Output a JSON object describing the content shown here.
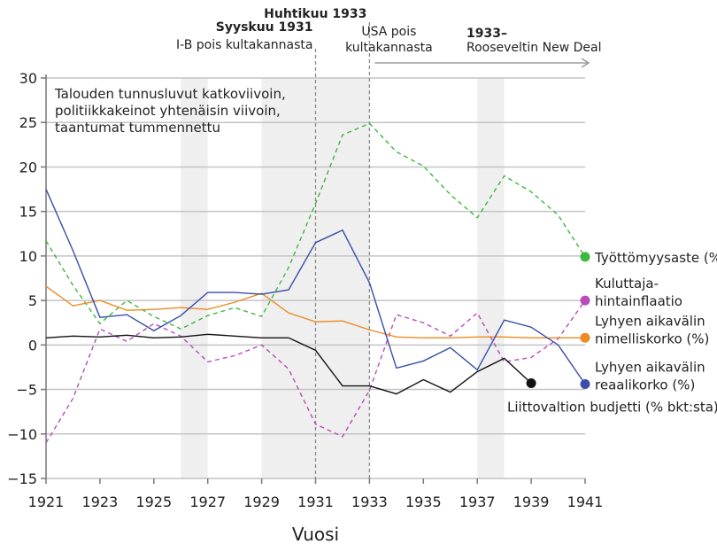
{
  "chart_data": {
    "type": "line",
    "xlabel": "Vuosi",
    "ylabel": "",
    "xlim": [
      1921,
      1941
    ],
    "ylim": [
      -15,
      30
    ],
    "yticks": [
      30,
      25,
      20,
      15,
      10,
      5,
      0,
      -5,
      -10,
      -15
    ],
    "ytick_labels": [
      "30",
      "25",
      "20",
      "15",
      "10",
      "5",
      "0",
      "−5",
      "−10",
      "−15"
    ],
    "xticks": [
      1921,
      1923,
      1925,
      1927,
      1929,
      1931,
      1933,
      1935,
      1937,
      1939,
      1941
    ],
    "xtick_labels": [
      "1921",
      "1923",
      "1925",
      "1927",
      "1929",
      "1931",
      "1933",
      "1935",
      "1937",
      "1939",
      "1941"
    ],
    "grid": "horizontal",
    "note": [
      "Talouden tunnusluvut katkoviivoin,",
      "politiikkakeinot yhtenäisin viivoin,",
      "taantumat tummennettu"
    ],
    "recessions": [
      [
        1926,
        1927
      ],
      [
        1929,
        1933
      ],
      [
        1937,
        1938
      ]
    ],
    "events": [
      {
        "year": 1931,
        "title": "Syyskuu 1931",
        "text": "I-B pois kultakannasta"
      },
      {
        "year": 1933,
        "title": "Huhtikuu 1933",
        "text": [
          "USA pois",
          "kultakannasta"
        ]
      }
    ],
    "arrow": {
      "from": 1933,
      "to": 1941,
      "title": "1933–",
      "text": "Rooseveltin New Deal"
    },
    "x": [
      1921,
      1922,
      1923,
      1924,
      1925,
      1926,
      1927,
      1928,
      1929,
      1930,
      1931,
      1932,
      1933,
      1934,
      1935,
      1936,
      1937,
      1938,
      1939,
      1940,
      1941
    ],
    "series": [
      {
        "name": "Työttömyysaste (%)",
        "label": [
          "Työttömyysaste (%)"
        ],
        "color": "#3cb83c",
        "dashed": true,
        "values": [
          11.7,
          6.7,
          2.4,
          5.0,
          3.2,
          1.8,
          3.3,
          4.2,
          3.2,
          8.7,
          15.9,
          23.6,
          24.9,
          21.7,
          20.1,
          16.9,
          14.3,
          19.0,
          17.2,
          14.6,
          9.9
        ]
      },
      {
        "name": "Kuluttajahintainflaatio",
        "label": [
          "Kuluttaja-",
          "hintainflaatio"
        ],
        "color": "#b84cb8",
        "dashed": true,
        "values": [
          -11.0,
          -6.0,
          1.8,
          0.4,
          2.4,
          1.0,
          -1.9,
          -1.2,
          0.0,
          -2.7,
          -8.9,
          -10.3,
          -5.1,
          3.4,
          2.5,
          1.0,
          3.6,
          -1.9,
          -1.4,
          0.7,
          5.0
        ]
      },
      {
        "name": "Lyhyen aikavälin nimelliskorko (%)",
        "label": [
          "Lyhyen aikavälin",
          "nimelliskorko (%)"
        ],
        "color": "#ee8a22",
        "dashed": false,
        "values": [
          6.6,
          4.4,
          5.0,
          3.9,
          4.0,
          4.2,
          4.0,
          4.8,
          5.8,
          3.6,
          2.6,
          2.7,
          1.7,
          0.9,
          0.8,
          0.8,
          0.9,
          0.9,
          0.8,
          0.8,
          0.8
        ]
      },
      {
        "name": "Lyhyen aikavälin reaalikorko (%)",
        "label": [
          "Lyhyen aikavälin",
          "reaalikorko (%)"
        ],
        "color": "#3a4ea8",
        "dashed": false,
        "values": [
          17.5,
          10.6,
          3.1,
          3.4,
          1.6,
          3.3,
          5.9,
          5.9,
          5.7,
          6.2,
          11.5,
          12.9,
          7.0,
          -2.6,
          -1.8,
          -0.3,
          -2.8,
          2.8,
          2.0,
          0.0,
          -4.4
        ]
      },
      {
        "name": "Liittovaltion budjetti (% bkt:sta)",
        "label": [
          "Liittovaltion budjetti (% bkt:sta)"
        ],
        "color": "#111111",
        "dashed": false,
        "values": [
          0.8,
          1.0,
          0.9,
          1.1,
          0.8,
          0.9,
          1.2,
          1.0,
          0.8,
          0.8,
          -0.6,
          -4.6,
          -4.6,
          -5.5,
          -3.9,
          -5.3,
          -3.0,
          -1.5,
          -4.3,
          null,
          null
        ]
      }
    ]
  }
}
